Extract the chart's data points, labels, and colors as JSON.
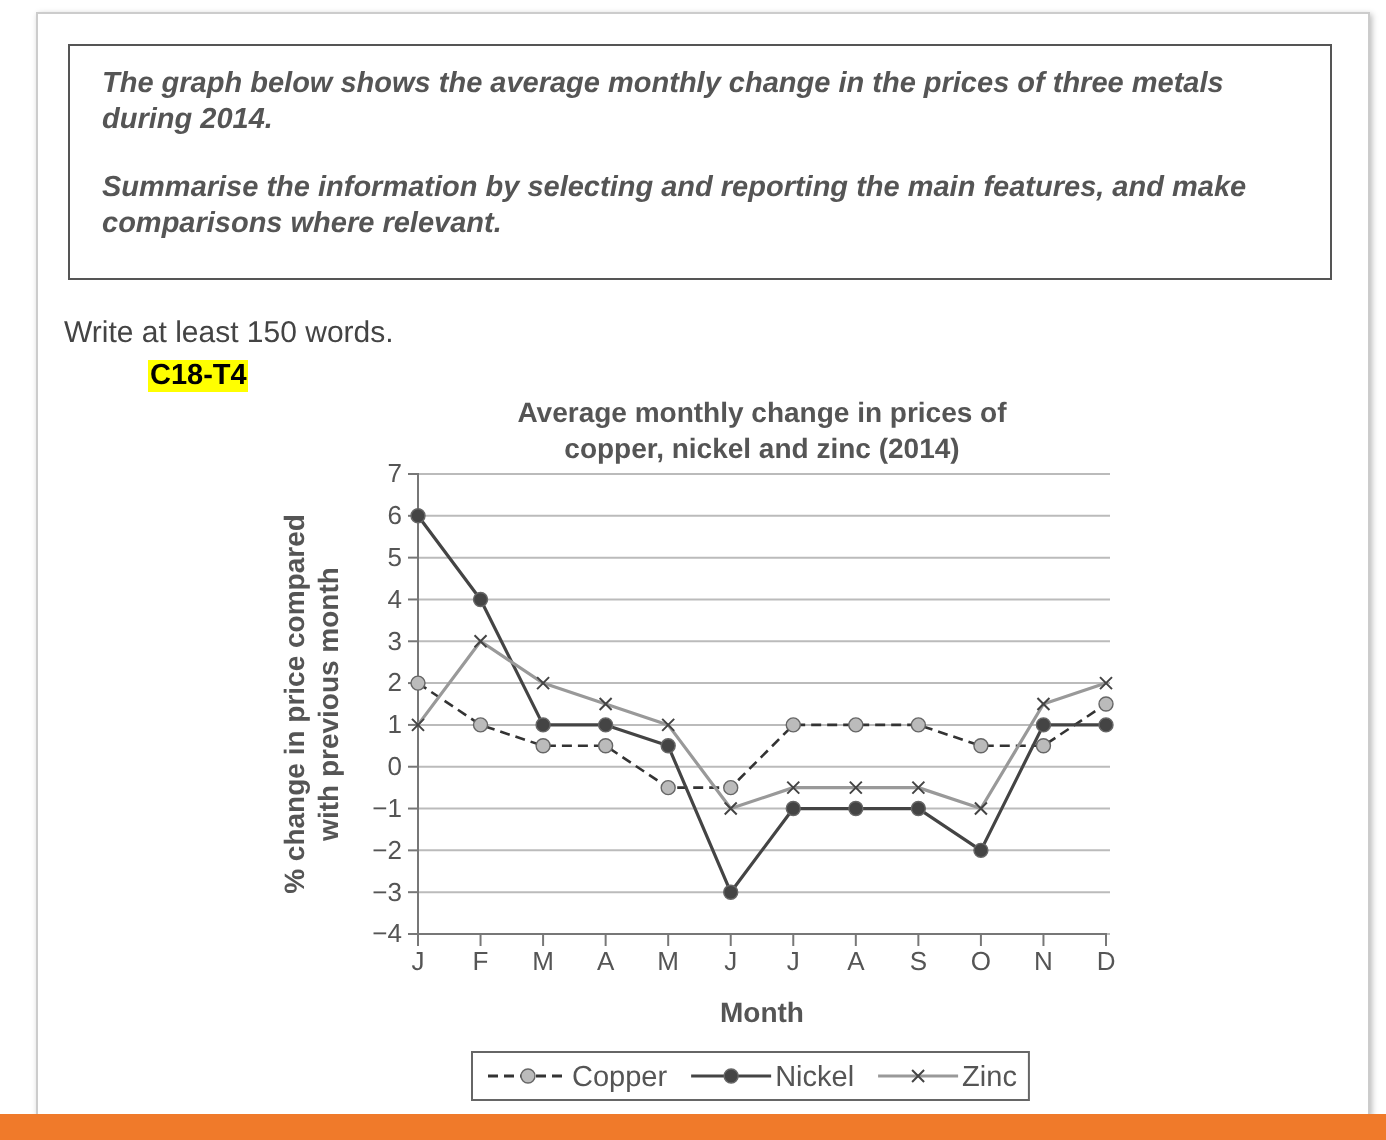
{
  "chart_data": {
    "type": "line",
    "title": "Average monthly change in prices of copper, nickel and zinc (2014)",
    "xlabel": "Month",
    "ylabel": "% change in price compared with previous month",
    "annotations": [
      "The graph below shows the average monthly change in the prices of three metals during 2014.",
      "Summarise the information by selecting and reporting the main features, and make comparisons where relevant.",
      "Write at least 150 words.",
      "C18-T4"
    ],
    "categories": [
      "J",
      "F",
      "M",
      "A",
      "M",
      "J",
      "J",
      "A",
      "S",
      "O",
      "N",
      "D"
    ],
    "series": [
      {
        "name": "Copper",
        "color": "#333333",
        "marker": "circle",
        "line_style": "dashed",
        "values": [
          2,
          1,
          0.5,
          0.5,
          -0.5,
          -0.5,
          1,
          1,
          1,
          0.5,
          0.5,
          1.5
        ]
      },
      {
        "name": "Nickel",
        "color": "#444444",
        "marker": "circle",
        "line_style": "solid",
        "values": [
          6,
          4,
          1,
          1,
          0.5,
          -3,
          -1,
          -1,
          -1,
          -2,
          1,
          1
        ]
      },
      {
        "name": "Zinc",
        "color": "#999999",
        "marker": "cross",
        "line_style": "solid",
        "values": [
          1,
          3,
          2,
          1.5,
          1,
          -1,
          -0.5,
          -0.5,
          -0.5,
          -1,
          1.5,
          2
        ]
      }
    ],
    "ylim": [
      -4,
      7
    ],
    "yticks": [
      -4,
      -3,
      -2,
      -1,
      0,
      1,
      2,
      3,
      4,
      5,
      6,
      7
    ],
    "grid": "y",
    "legend": "bottom"
  }
}
